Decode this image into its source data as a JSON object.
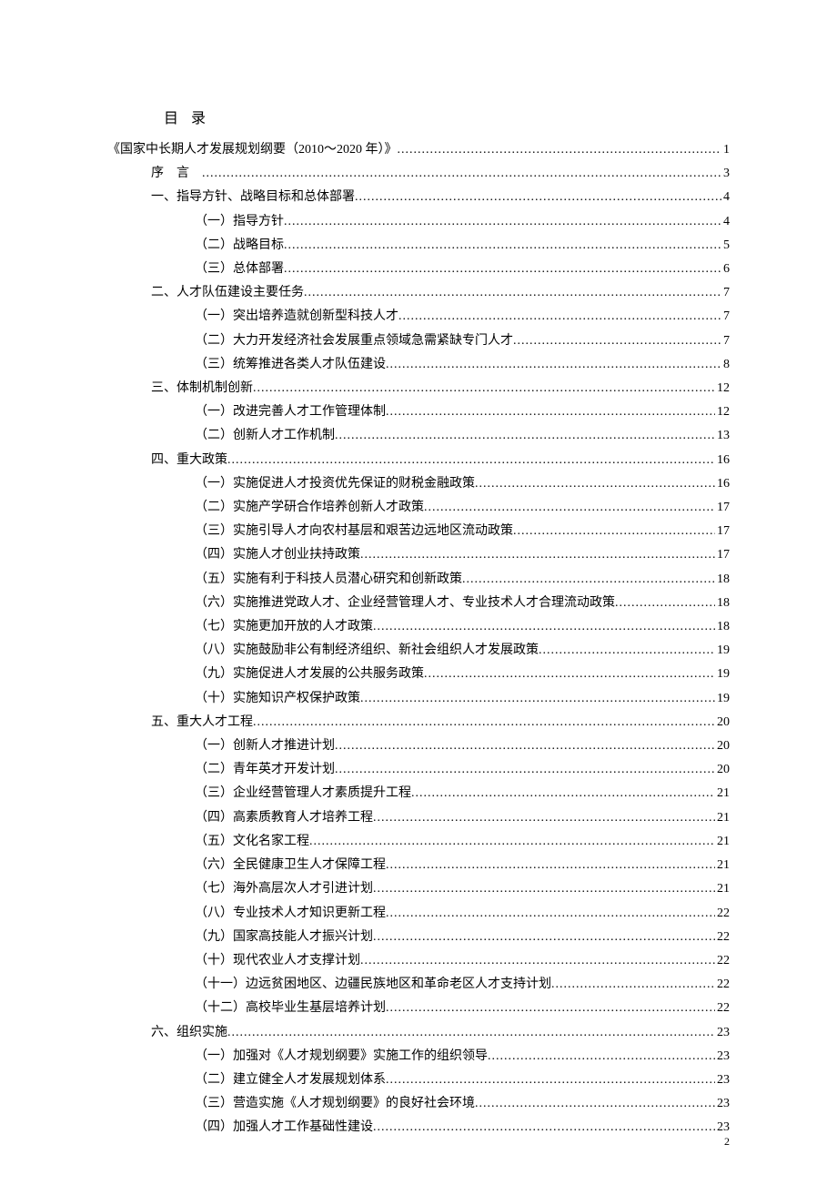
{
  "toc_title": "目录",
  "footer_page": "2",
  "entries": [
    {
      "level": 0,
      "text": "《国家中长期人才发展规划纲要（2010～2020 年）》",
      "page": "1"
    },
    {
      "level": 1,
      "text": "序言",
      "page": "3",
      "spaced": true
    },
    {
      "level": 1,
      "text": "一、指导方针、战略目标和总体部署",
      "page": "4"
    },
    {
      "level": 2,
      "text": "（一）指导方针",
      "page": "4"
    },
    {
      "level": 2,
      "text": "（二）战略目标",
      "page": "5"
    },
    {
      "level": 2,
      "text": "（三）总体部署",
      "page": "6"
    },
    {
      "level": 1,
      "text": "二、人才队伍建设主要任务",
      "page": "7"
    },
    {
      "level": 2,
      "text": "（一）突出培养造就创新型科技人才",
      "page": "7"
    },
    {
      "level": 2,
      "text": "（二）大力开发经济社会发展重点领域急需紧缺专门人才",
      "page": "7"
    },
    {
      "level": 2,
      "text": "（三）统筹推进各类人才队伍建设",
      "page": "8"
    },
    {
      "level": 1,
      "text": "三、体制机制创新",
      "page": "12"
    },
    {
      "level": 2,
      "text": "（一）改进完善人才工作管理体制",
      "page": "12"
    },
    {
      "level": 2,
      "text": "（二）创新人才工作机制",
      "page": "13"
    },
    {
      "level": 1,
      "text": "四、重大政策",
      "page": "16"
    },
    {
      "level": 2,
      "text": "（一）实施促进人才投资优先保证的财税金融政策",
      "page": "16"
    },
    {
      "level": 2,
      "text": "（二）实施产学研合作培养创新人才政策",
      "page": "17"
    },
    {
      "level": 2,
      "text": "（三）实施引导人才向农村基层和艰苦边远地区流动政策",
      "page": "17"
    },
    {
      "level": 2,
      "text": "（四）实施人才创业扶持政策",
      "page": "17"
    },
    {
      "level": 2,
      "text": "（五）实施有利于科技人员潜心研究和创新政策",
      "page": "18"
    },
    {
      "level": 2,
      "text": "（六）实施推进党政人才、企业经营管理人才、专业技术人才合理流动政策",
      "page": "18"
    },
    {
      "level": 2,
      "text": "（七）实施更加开放的人才政策",
      "page": "18"
    },
    {
      "level": 2,
      "text": "（八）实施鼓励非公有制经济组织、新社会组织人才发展政策",
      "page": "19"
    },
    {
      "level": 2,
      "text": "（九）实施促进人才发展的公共服务政策",
      "page": "19"
    },
    {
      "level": 2,
      "text": "（十）实施知识产权保护政策",
      "page": "19"
    },
    {
      "level": 1,
      "text": "五、重大人才工程",
      "page": "20"
    },
    {
      "level": 2,
      "text": "（一）创新人才推进计划",
      "page": "20"
    },
    {
      "level": 2,
      "text": "（二）青年英才开发计划",
      "page": "20"
    },
    {
      "level": 2,
      "text": "（三）企业经营管理人才素质提升工程",
      "page": "21"
    },
    {
      "level": 2,
      "text": "（四）高素质教育人才培养工程",
      "page": "21"
    },
    {
      "level": 2,
      "text": "（五）文化名家工程",
      "page": "21"
    },
    {
      "level": 2,
      "text": "（六）全民健康卫生人才保障工程",
      "page": "21"
    },
    {
      "level": 2,
      "text": "（七）海外高层次人才引进计划",
      "page": "21"
    },
    {
      "level": 2,
      "text": "（八）专业技术人才知识更新工程",
      "page": "22"
    },
    {
      "level": 2,
      "text": "（九）国家高技能人才振兴计划",
      "page": "22"
    },
    {
      "level": 2,
      "text": "（十）现代农业人才支撑计划",
      "page": "22"
    },
    {
      "level": 2,
      "text": "（十一）边远贫困地区、边疆民族地区和革命老区人才支持计划",
      "page": "22"
    },
    {
      "level": 2,
      "text": "（十二）高校毕业生基层培养计划",
      "page": "22"
    },
    {
      "level": 1,
      "text": "六、组织实施",
      "page": "23"
    },
    {
      "level": 2,
      "text": "（一）加强对《人才规划纲要》实施工作的组织领导",
      "page": "23"
    },
    {
      "level": 2,
      "text": "（二）建立健全人才发展规划体系",
      "page": "23"
    },
    {
      "level": 2,
      "text": "（三）营造实施《人才规划纲要》的良好社会环境",
      "page": "23"
    },
    {
      "level": 2,
      "text": "（四）加强人才工作基础性建设",
      "page": "23"
    }
  ]
}
